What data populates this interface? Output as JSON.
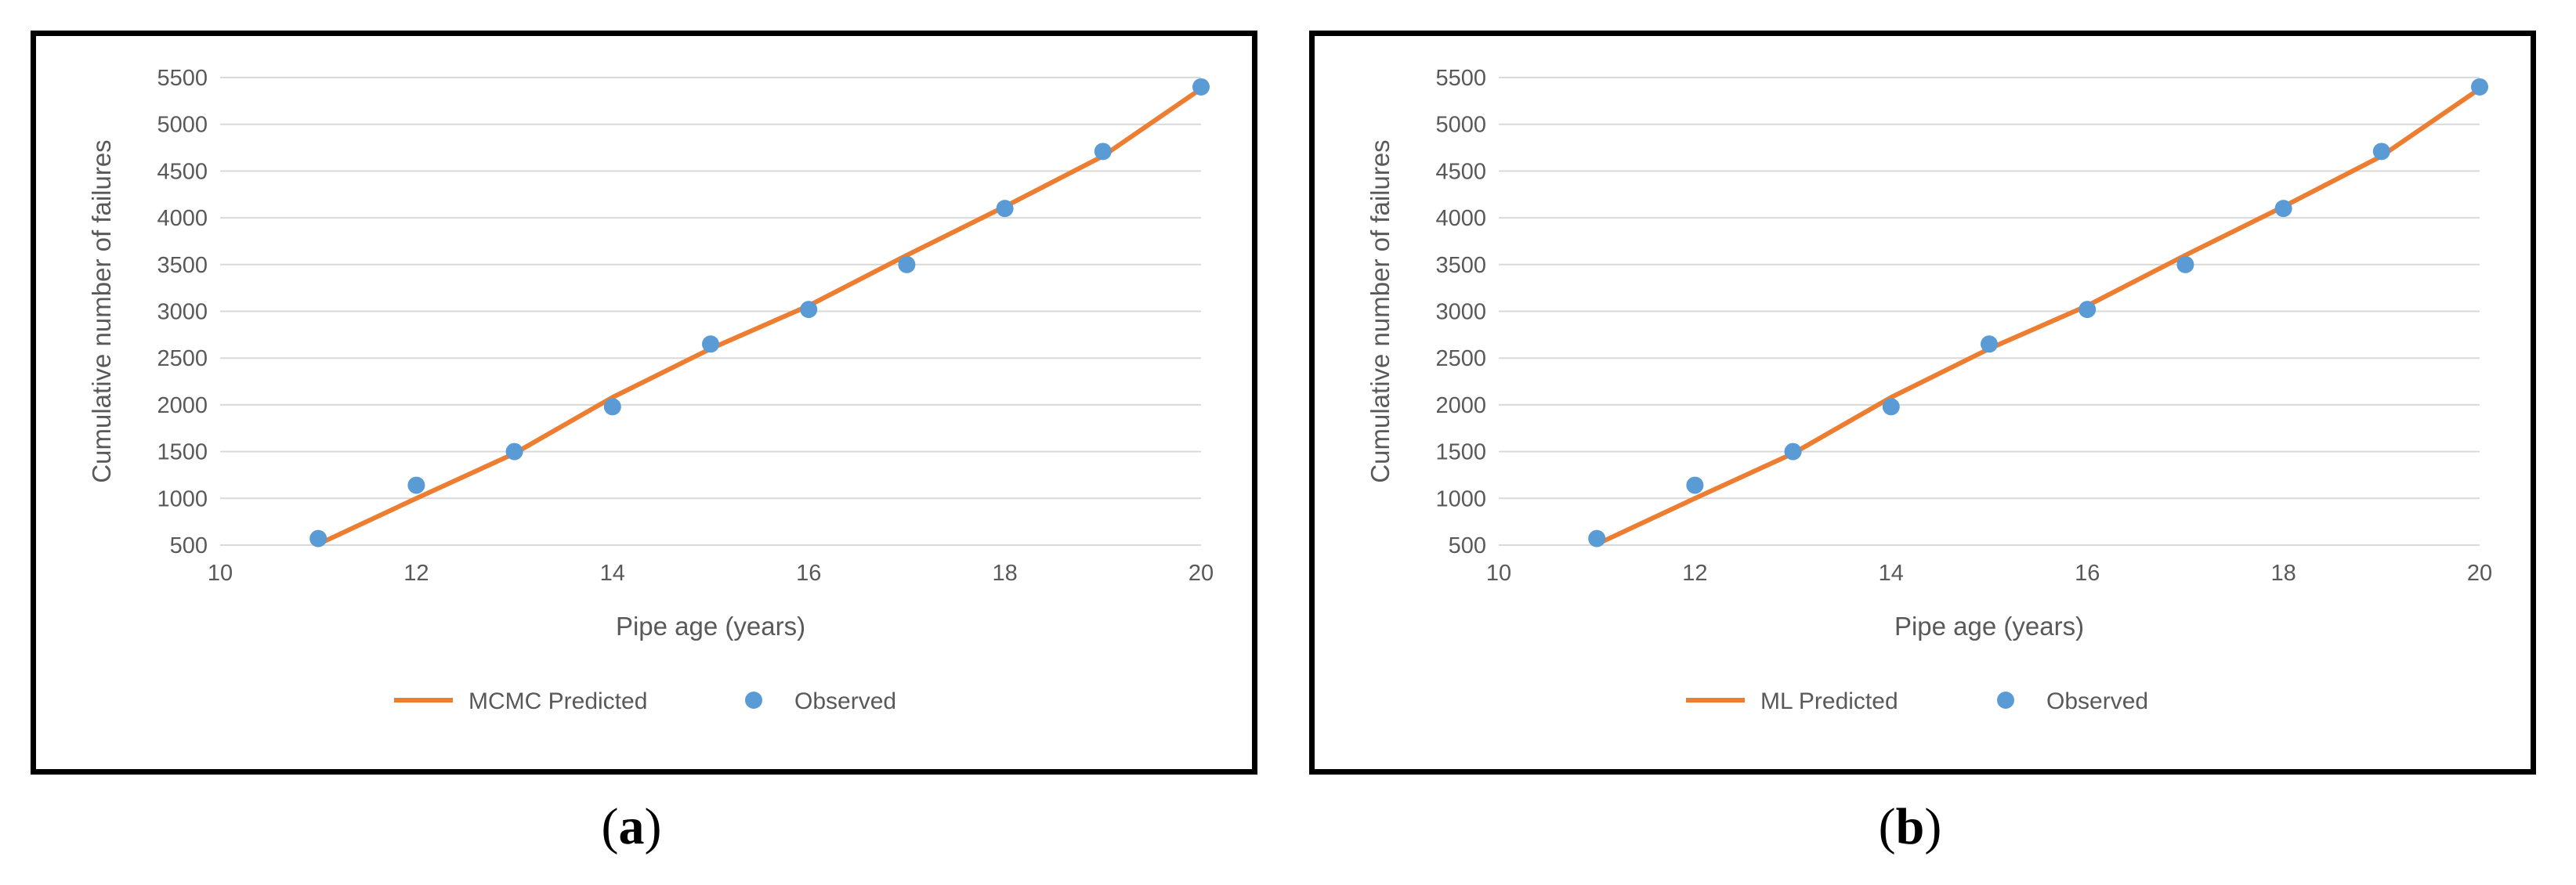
{
  "chart_data": [
    {
      "type": "line",
      "panel": "a",
      "caption": "a",
      "xlabel": "Pipe age (years)",
      "ylabel": "Cumulative number of failures",
      "xlim": [
        10,
        20
      ],
      "ylim": [
        500,
        5500
      ],
      "xticks": [
        10,
        12,
        14,
        16,
        18,
        20
      ],
      "yticks": [
        500,
        1000,
        1500,
        2000,
        2500,
        3000,
        3500,
        4000,
        4500,
        5000,
        5500
      ],
      "grid": "horizontal",
      "legend_position": "bottom",
      "series": [
        {
          "name": "MCMC Predicted",
          "kind": "line",
          "color": "#ED7D31",
          "x": [
            11,
            12,
            13,
            14,
            15,
            16,
            17,
            18,
            19,
            20
          ],
          "y": [
            510,
            1000,
            1480,
            2080,
            2600,
            3060,
            3600,
            4120,
            4660,
            5380
          ]
        },
        {
          "name": "Observed",
          "kind": "scatter",
          "color": "#5B9BD5",
          "x": [
            11,
            12,
            13,
            14,
            15,
            16,
            17,
            18,
            19,
            20
          ],
          "y": [
            570,
            1140,
            1500,
            1980,
            2650,
            3020,
            3500,
            4100,
            4710,
            5400
          ]
        }
      ]
    },
    {
      "type": "line",
      "panel": "b",
      "caption": "b",
      "xlabel": "Pipe age (years)",
      "ylabel": "Cumulative number of failures",
      "xlim": [
        10,
        20
      ],
      "ylim": [
        500,
        5500
      ],
      "xticks": [
        10,
        12,
        14,
        16,
        18,
        20
      ],
      "yticks": [
        500,
        1000,
        1500,
        2000,
        2500,
        3000,
        3500,
        4000,
        4500,
        5000,
        5500
      ],
      "grid": "horizontal",
      "legend_position": "bottom",
      "series": [
        {
          "name": "ML Predicted",
          "kind": "line",
          "color": "#ED7D31",
          "x": [
            11,
            12,
            13,
            14,
            15,
            16,
            17,
            18,
            19,
            20
          ],
          "y": [
            510,
            1000,
            1480,
            2080,
            2600,
            3060,
            3600,
            4120,
            4660,
            5380
          ]
        },
        {
          "name": "Observed",
          "kind": "scatter",
          "color": "#5B9BD5",
          "x": [
            11,
            12,
            13,
            14,
            15,
            16,
            17,
            18,
            19,
            20
          ],
          "y": [
            570,
            1140,
            1500,
            1980,
            2650,
            3020,
            3500,
            4100,
            4710,
            5400
          ]
        }
      ]
    }
  ]
}
